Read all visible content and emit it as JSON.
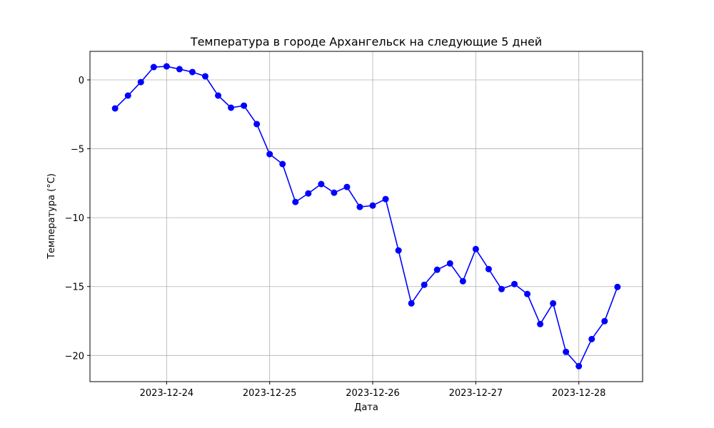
{
  "chart_data": {
    "type": "line",
    "title": "Температура в городе Архангельск на следующие 5 дней",
    "x_label": "Дата",
    "y_label": "Температура (°C)",
    "x": [
      "2023-12-23T12:00",
      "2023-12-23T15:00",
      "2023-12-23T18:00",
      "2023-12-23T21:00",
      "2023-12-24T00:00",
      "2023-12-24T03:00",
      "2023-12-24T06:00",
      "2023-12-24T09:00",
      "2023-12-24T12:00",
      "2023-12-24T15:00",
      "2023-12-24T18:00",
      "2023-12-24T21:00",
      "2023-12-25T00:00",
      "2023-12-25T03:00",
      "2023-12-25T06:00",
      "2023-12-25T09:00",
      "2023-12-25T12:00",
      "2023-12-25T15:00",
      "2023-12-25T18:00",
      "2023-12-25T21:00",
      "2023-12-26T00:00",
      "2023-12-26T03:00",
      "2023-12-26T06:00",
      "2023-12-26T09:00",
      "2023-12-26T12:00",
      "2023-12-26T15:00",
      "2023-12-26T18:00",
      "2023-12-26T21:00",
      "2023-12-27T00:00",
      "2023-12-27T03:00",
      "2023-12-27T06:00",
      "2023-12-27T09:00",
      "2023-12-27T12:00",
      "2023-12-27T15:00",
      "2023-12-27T18:00",
      "2023-12-27T21:00",
      "2023-12-28T00:00",
      "2023-12-28T03:00",
      "2023-12-28T06:00",
      "2023-12-28T09:00"
    ],
    "series": [
      {
        "name": "Температура",
        "color": "#0000ff",
        "values": [
          -2.07,
          -1.14,
          -0.16,
          0.93,
          0.98,
          0.78,
          0.57,
          0.26,
          -1.14,
          -2.02,
          -1.87,
          -3.21,
          -5.39,
          -6.11,
          -8.86,
          -8.24,
          -7.56,
          -8.19,
          -7.77,
          -9.22,
          -9.12,
          -8.65,
          -12.38,
          -16.22,
          -14.87,
          -13.78,
          -13.32,
          -14.61,
          -12.28,
          -13.73,
          -15.18,
          -14.82,
          -15.54,
          -17.72,
          -16.22,
          -19.74,
          -20.78,
          -18.81,
          -17.51,
          -15.03
        ]
      }
    ],
    "xlim": [
      "2023-12-23T06:09",
      "2023-12-28T14:51"
    ],
    "xticks": [
      "2023-12-24",
      "2023-12-25",
      "2023-12-26",
      "2023-12-27",
      "2023-12-28"
    ],
    "ylim": [
      -21.9,
      2.07
    ],
    "yticks": [
      {
        "value": -20,
        "label": "−20"
      },
      {
        "value": -15,
        "label": "−15"
      },
      {
        "value": -10,
        "label": "−10"
      },
      {
        "value": -5,
        "label": "−5"
      },
      0
    ],
    "grid": true
  }
}
